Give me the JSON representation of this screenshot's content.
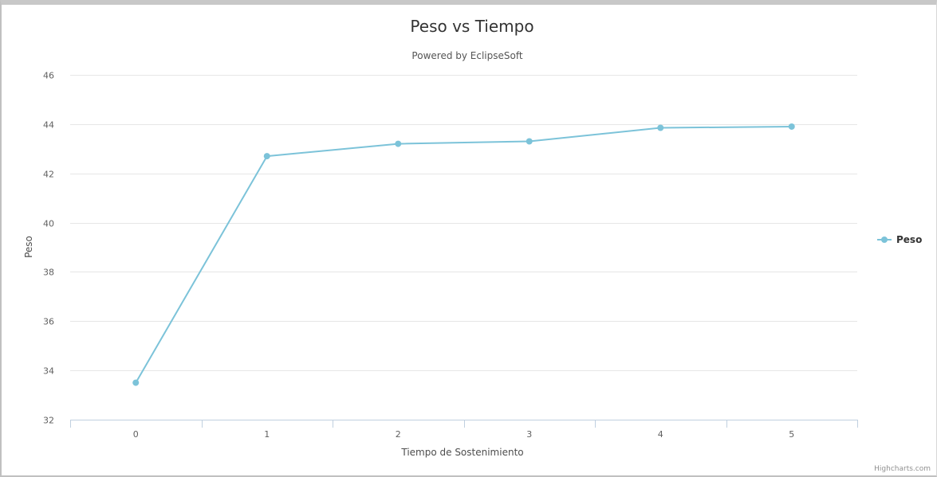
{
  "chart_data": {
    "type": "line",
    "title": "Peso vs Tiempo",
    "subtitle": "Powered by EclipseSoft",
    "xlabel": "Tiempo de Sostenimiento",
    "ylabel": "Peso",
    "categories": [
      "0",
      "1",
      "2",
      "3",
      "4",
      "5"
    ],
    "series": [
      {
        "name": "Peso",
        "values": [
          33.5,
          42.7,
          43.2,
          43.3,
          43.85,
          43.9
        ]
      }
    ],
    "ylim": [
      32,
      46
    ],
    "yticks": [
      "32",
      "34",
      "36",
      "38",
      "40",
      "42",
      "44",
      "46"
    ],
    "grid": true,
    "legend_position": "right",
    "series_color": "#7cc3d9",
    "credits": "Highcharts.com"
  }
}
